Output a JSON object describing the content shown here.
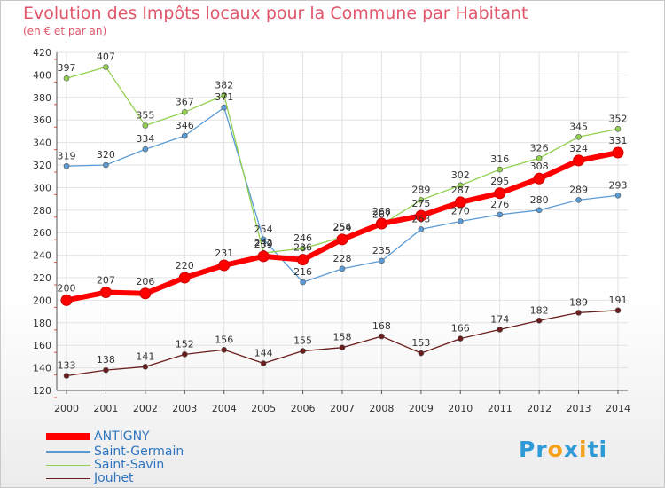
{
  "title": "Evolution des Impôts locaux pour la Commune par Habitant",
  "subtitle": "(en € et par an)",
  "chart_data": {
    "type": "line",
    "x": [
      "2000",
      "2001",
      "2002",
      "2003",
      "2004",
      "2005",
      "2006",
      "2007",
      "2008",
      "2009",
      "2010",
      "2011",
      "2012",
      "2013",
      "2014"
    ],
    "y_ticks": [
      "120",
      "140",
      "160",
      "180",
      "200",
      "220",
      "240",
      "260",
      "280",
      "300",
      "320",
      "340",
      "360",
      "380",
      "400",
      "420"
    ],
    "ylim": [
      120,
      420
    ],
    "grid": true,
    "legend_position": "bottom-left",
    "series": [
      {
        "name": "ANTIGNY",
        "color": "#ff0000",
        "values": [
          200,
          207,
          206,
          220,
          231,
          239,
          236,
          254,
          268,
          275,
          287,
          295,
          308,
          324,
          331
        ]
      },
      {
        "name": "Saint-Germain",
        "color": "#5b9bd5",
        "values": [
          319,
          320,
          334,
          346,
          371,
          254,
          216,
          228,
          235,
          263,
          270,
          276,
          280,
          289,
          293
        ]
      },
      {
        "name": "Saint-Savin",
        "color": "#92d050",
        "values": [
          397,
          407,
          355,
          367,
          382,
          242,
          246,
          256,
          267,
          289,
          302,
          316,
          326,
          345,
          352
        ]
      },
      {
        "name": "Jouhet",
        "color": "#6b1c1c",
        "values": [
          133,
          138,
          141,
          152,
          156,
          144,
          155,
          158,
          168,
          153,
          166,
          174,
          182,
          189,
          191
        ]
      }
    ],
    "value_labels": {
      "ANTIGNY": [
        "200",
        "207",
        "206",
        "220",
        "231",
        "239",
        "236",
        "254",
        "268",
        "275",
        "287",
        "295",
        "308",
        "324",
        "331"
      ],
      "Saint-Germain": [
        "319",
        "320",
        "334",
        "346",
        "371",
        "254",
        "216",
        "228",
        "235",
        "263",
        "270",
        "276",
        "280",
        "289",
        "293"
      ],
      "Saint-Savin": [
        "397",
        "407",
        "355",
        "367",
        "382",
        "242",
        "246",
        "256",
        "267",
        "289",
        "302",
        "316",
        "326",
        "345",
        "352"
      ],
      "Jouhet": [
        "133",
        "138",
        "141",
        "152",
        "156",
        "144",
        "155",
        "158",
        "168",
        "153",
        "166",
        "174",
        "182",
        "189",
        "191"
      ]
    }
  },
  "logo": {
    "text_parts": [
      "Pr",
      "o",
      "x",
      "i",
      "ti"
    ],
    "colors": [
      "#2e9bd6",
      "#f7a11a",
      "#2e9bd6",
      "#f7a11a",
      "#2e9bd6"
    ]
  }
}
